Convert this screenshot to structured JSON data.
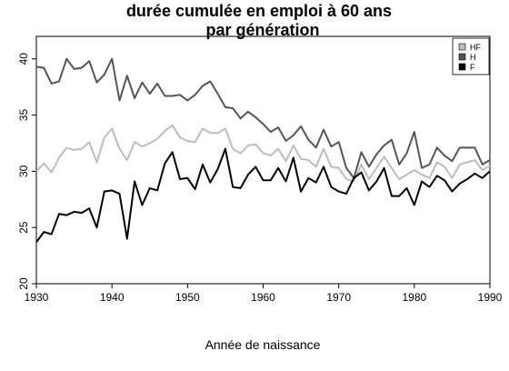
{
  "chart_data": {
    "type": "line",
    "title": [
      "durée cumulée en emploi à 60 ans",
      "par génération"
    ],
    "xlabel": "Année de naissance",
    "ylabel": "",
    "xlim": [
      1930,
      1990
    ],
    "ylim": [
      20,
      42
    ],
    "xticks": [
      1930,
      1940,
      1950,
      1960,
      1970,
      1980,
      1990
    ],
    "yticks": [
      20,
      25,
      30,
      35,
      40
    ],
    "grid": false,
    "legend_position": "top-right",
    "x": [
      1930,
      1931,
      1932,
      1933,
      1934,
      1935,
      1936,
      1937,
      1938,
      1939,
      1940,
      1941,
      1942,
      1943,
      1944,
      1945,
      1946,
      1947,
      1948,
      1949,
      1950,
      1951,
      1952,
      1953,
      1954,
      1955,
      1956,
      1957,
      1958,
      1959,
      1960,
      1961,
      1962,
      1963,
      1964,
      1965,
      1966,
      1967,
      1968,
      1969,
      1970,
      1971,
      1972,
      1973,
      1974,
      1975,
      1976,
      1977,
      1978,
      1979,
      1980,
      1981,
      1982,
      1983,
      1984,
      1985,
      1986,
      1987,
      1988,
      1989,
      1990
    ],
    "series": [
      {
        "name": "HF",
        "color": "#bdbdbd",
        "values": [
          30.0,
          30.7,
          29.9,
          31.2,
          32.1,
          31.9,
          32.0,
          32.6,
          30.8,
          33.0,
          33.8,
          32.0,
          31.0,
          32.6,
          32.2,
          32.5,
          32.9,
          33.6,
          34.1,
          33.0,
          32.7,
          32.6,
          33.8,
          33.4,
          33.4,
          33.8,
          32.0,
          31.6,
          32.3,
          32.4,
          31.6,
          31.4,
          32.0,
          30.9,
          32.3,
          31.1,
          31.0,
          30.4,
          32.0,
          30.4,
          30.3,
          29.3,
          29.1,
          30.6,
          29.3,
          30.3,
          31.3,
          30.3,
          29.3,
          29.7,
          30.1,
          29.7,
          29.4,
          30.8,
          30.4,
          29.4,
          30.6,
          30.8,
          31.0,
          30.1,
          30.5
        ]
      },
      {
        "name": "H",
        "color": "#555555",
        "values": [
          39.3,
          39.2,
          37.8,
          38.0,
          40.0,
          39.1,
          39.2,
          39.8,
          37.9,
          38.6,
          40.0,
          36.3,
          38.5,
          36.5,
          37.9,
          36.9,
          37.8,
          36.7,
          36.7,
          36.8,
          36.3,
          36.8,
          37.6,
          38.0,
          36.9,
          35.7,
          35.6,
          34.7,
          35.3,
          34.8,
          34.2,
          33.5,
          33.9,
          32.7,
          33.2,
          34.0,
          32.8,
          32.1,
          33.7,
          32.2,
          32.6,
          30.3,
          29.4,
          31.7,
          30.4,
          31.5,
          32.3,
          32.8,
          30.6,
          31.6,
          33.5,
          30.3,
          30.6,
          32.1,
          31.4,
          30.9,
          32.1,
          32.1,
          32.1,
          30.6,
          31.0
        ]
      },
      {
        "name": "F",
        "color": "#000000",
        "values": [
          23.7,
          24.6,
          24.4,
          26.2,
          26.1,
          26.4,
          26.3,
          26.7,
          25.0,
          28.2,
          28.3,
          28.0,
          24.0,
          29.1,
          27.0,
          28.5,
          28.3,
          30.7,
          31.7,
          29.3,
          29.4,
          28.4,
          30.6,
          29.0,
          30.2,
          32.0,
          28.6,
          28.5,
          29.7,
          30.4,
          29.2,
          29.2,
          30.3,
          29.1,
          31.2,
          28.2,
          29.4,
          29.0,
          30.4,
          28.6,
          28.2,
          28.0,
          29.4,
          29.9,
          28.3,
          29.1,
          30.3,
          27.8,
          27.8,
          28.5,
          27.0,
          29.1,
          28.6,
          29.6,
          29.2,
          28.2,
          28.9,
          29.3,
          29.8,
          29.4,
          30.0
        ]
      }
    ]
  }
}
